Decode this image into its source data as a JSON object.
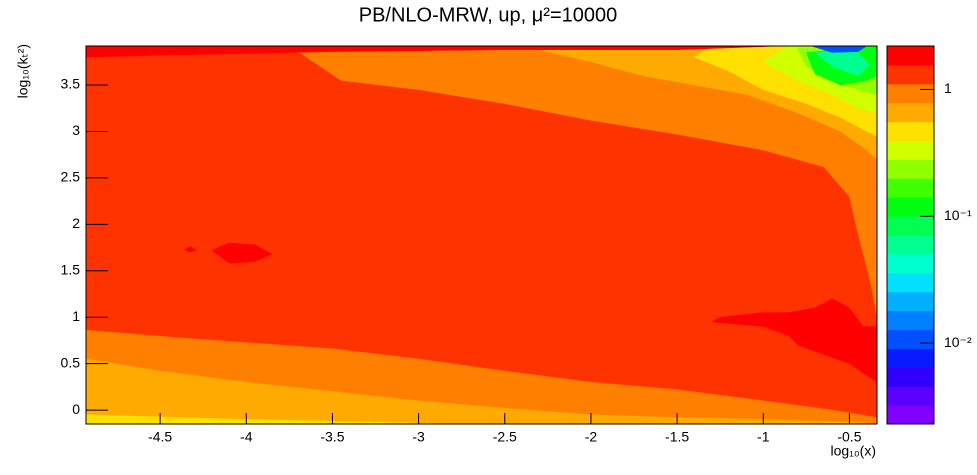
{
  "chart_data": {
    "type": "contour",
    "title": "PB/NLO-MRW, up, μ²=10000",
    "x_label": "log₁₀(x)",
    "y_label": "log₁₀(kₜ²)",
    "xlim": [
      -4.93,
      -0.34
    ],
    "ylim": [
      -0.15,
      3.92
    ],
    "xticks": [
      -4.5,
      -4,
      -3.5,
      -3,
      -2.5,
      -2,
      -1.5,
      -1,
      -0.5
    ],
    "yticks": [
      0,
      0.5,
      1,
      1.5,
      2,
      2.5,
      3,
      3.5
    ],
    "zlim": [
      0.0023,
      2.2
    ],
    "zlog": true,
    "zticks": [
      {
        "value": 0.01,
        "label": "10⁻²"
      },
      {
        "value": 0.1,
        "label": "10⁻¹"
      },
      1
    ],
    "palette": [
      "#8000ff",
      "#5a00ff",
      "#3000ff",
      "#0a1aff",
      "#0050ff",
      "#0080ff",
      "#00b0ff",
      "#00e0ff",
      "#00ffd0",
      "#00ff90",
      "#00ff50",
      "#00ff10",
      "#40ff00",
      "#90ff00",
      "#d0ff00",
      "#ffe000",
      "#ffaa00",
      "#ff8000",
      "#ff3300",
      "#ff0000"
    ],
    "contours": [
      {
        "level": 1.3,
        "x": [
          -4.93,
          -0.34,
          -0.34,
          -4.93
        ],
        "y": [
          3.92,
          3.92,
          -0.15,
          -0.15
        ]
      },
      {
        "level": 0.9,
        "x": [
          -4.93,
          -4.4,
          -3.5,
          -3,
          -2.5,
          -2,
          -1.5,
          -1,
          -0.6,
          -0.34,
          -0.34,
          -4.93
        ],
        "y": [
          0.86,
          0.78,
          0.66,
          0.55,
          0.42,
          0.3,
          0.22,
          0.1,
          0.0,
          -0.08,
          -0.15,
          -0.15
        ]
      },
      {
        "level": 0.65,
        "x": [
          -4.93,
          -4.5,
          -4,
          -3.5,
          -3,
          -2.5,
          -2,
          -1.5,
          -1,
          -0.5,
          -0.34,
          -4.93
        ],
        "y": [
          0.55,
          0.42,
          0.3,
          0.2,
          0.1,
          0.02,
          -0.05,
          -0.08,
          -0.1,
          -0.13,
          -0.15,
          -0.15
        ]
      },
      {
        "level": 0.45,
        "x": [
          -4.93,
          -4,
          -3,
          -2.8,
          -4.93
        ],
        "y": [
          -0.05,
          -0.1,
          -0.14,
          -0.15,
          -0.15
        ]
      },
      {
        "level": 0.9,
        "x": [
          -3.7,
          -3.45,
          -3,
          -2.5,
          -2,
          -1.5,
          -1,
          -0.65,
          -0.5,
          -0.45,
          -0.38,
          -0.34,
          -0.34,
          -3.7
        ],
        "y": [
          3.86,
          3.55,
          3.45,
          3.3,
          3.12,
          2.97,
          2.8,
          2.62,
          2.3,
          1.9,
          1.4,
          1.0,
          3.92,
          3.92
        ]
      },
      {
        "level": 0.65,
        "x": [
          -2.3,
          -2.0,
          -1.7,
          -1.4,
          -1.1,
          -0.8,
          -0.55,
          -0.4,
          -0.34,
          -0.34,
          -2.3
        ],
        "y": [
          3.88,
          3.75,
          3.6,
          3.5,
          3.4,
          3.2,
          3.0,
          2.8,
          2.7,
          3.92,
          3.92
        ]
      },
      {
        "level": 0.45,
        "x": [
          -1.4,
          -1.2,
          -1,
          -0.75,
          -0.55,
          -0.4,
          -0.34,
          -0.34,
          -1.3
        ],
        "y": [
          3.8,
          3.65,
          3.45,
          3.3,
          3.15,
          3.0,
          2.95,
          3.92,
          3.92
        ]
      },
      {
        "level": 0.33,
        "x": [
          -1.0,
          -0.8,
          -0.6,
          -0.45,
          -0.34,
          -0.34,
          -0.85
        ],
        "y": [
          3.75,
          3.55,
          3.4,
          3.25,
          3.2,
          3.92,
          3.92
        ]
      },
      {
        "level": 0.24,
        "x": [
          -0.75,
          -0.6,
          -0.45,
          -0.34,
          -0.34,
          -0.8
        ],
        "y": [
          3.7,
          3.55,
          3.45,
          3.4,
          3.92,
          3.9
        ]
      },
      {
        "level": 0.12,
        "x": [
          -0.7,
          -0.55,
          -0.4,
          -0.34,
          -0.34,
          -0.75
        ],
        "y": [
          3.62,
          3.5,
          3.55,
          3.6,
          3.92,
          3.85
        ]
      },
      {
        "level": 0.06,
        "x": [
          -0.6,
          -0.45,
          -0.38,
          -0.45,
          -0.7
        ],
        "y": [
          3.7,
          3.6,
          3.72,
          3.85,
          3.85
        ]
      },
      {
        "level": 0.012,
        "x": [
          -0.72,
          -0.6,
          -0.45,
          -0.4
        ],
        "y": [
          3.92,
          3.85,
          3.86,
          3.92
        ]
      },
      {
        "level": 1.8,
        "x": [
          -4.93,
          -4.93,
          -4.5,
          -3.5,
          -2.5,
          -1.5,
          -0.9
        ],
        "y": [
          3.92,
          3.8,
          3.82,
          3.86,
          3.88,
          3.88,
          3.92
        ]
      },
      {
        "level": 1.8,
        "x": [
          -4.2,
          -4.1,
          -3.95,
          -3.85,
          -3.95,
          -4.1
        ],
        "y": [
          1.72,
          1.8,
          1.78,
          1.68,
          1.6,
          1.58
        ]
      },
      {
        "level": 1.8,
        "x": [
          -4.36,
          -4.32,
          -4.29,
          -4.33
        ],
        "y": [
          1.73,
          1.76,
          1.72,
          1.7
        ]
      },
      {
        "level": 1.8,
        "x": [
          -1.25,
          -1.0,
          -0.85,
          -0.7,
          -0.6,
          -0.5,
          -0.42,
          -0.34,
          -0.34,
          -0.5,
          -0.65,
          -0.8,
          -0.85,
          -1.0,
          -1.3
        ],
        "y": [
          1.0,
          1.05,
          1.05,
          1.1,
          1.2,
          1.1,
          0.9,
          0.9,
          0.3,
          0.5,
          0.6,
          0.7,
          0.8,
          0.9,
          0.95
        ]
      }
    ]
  }
}
